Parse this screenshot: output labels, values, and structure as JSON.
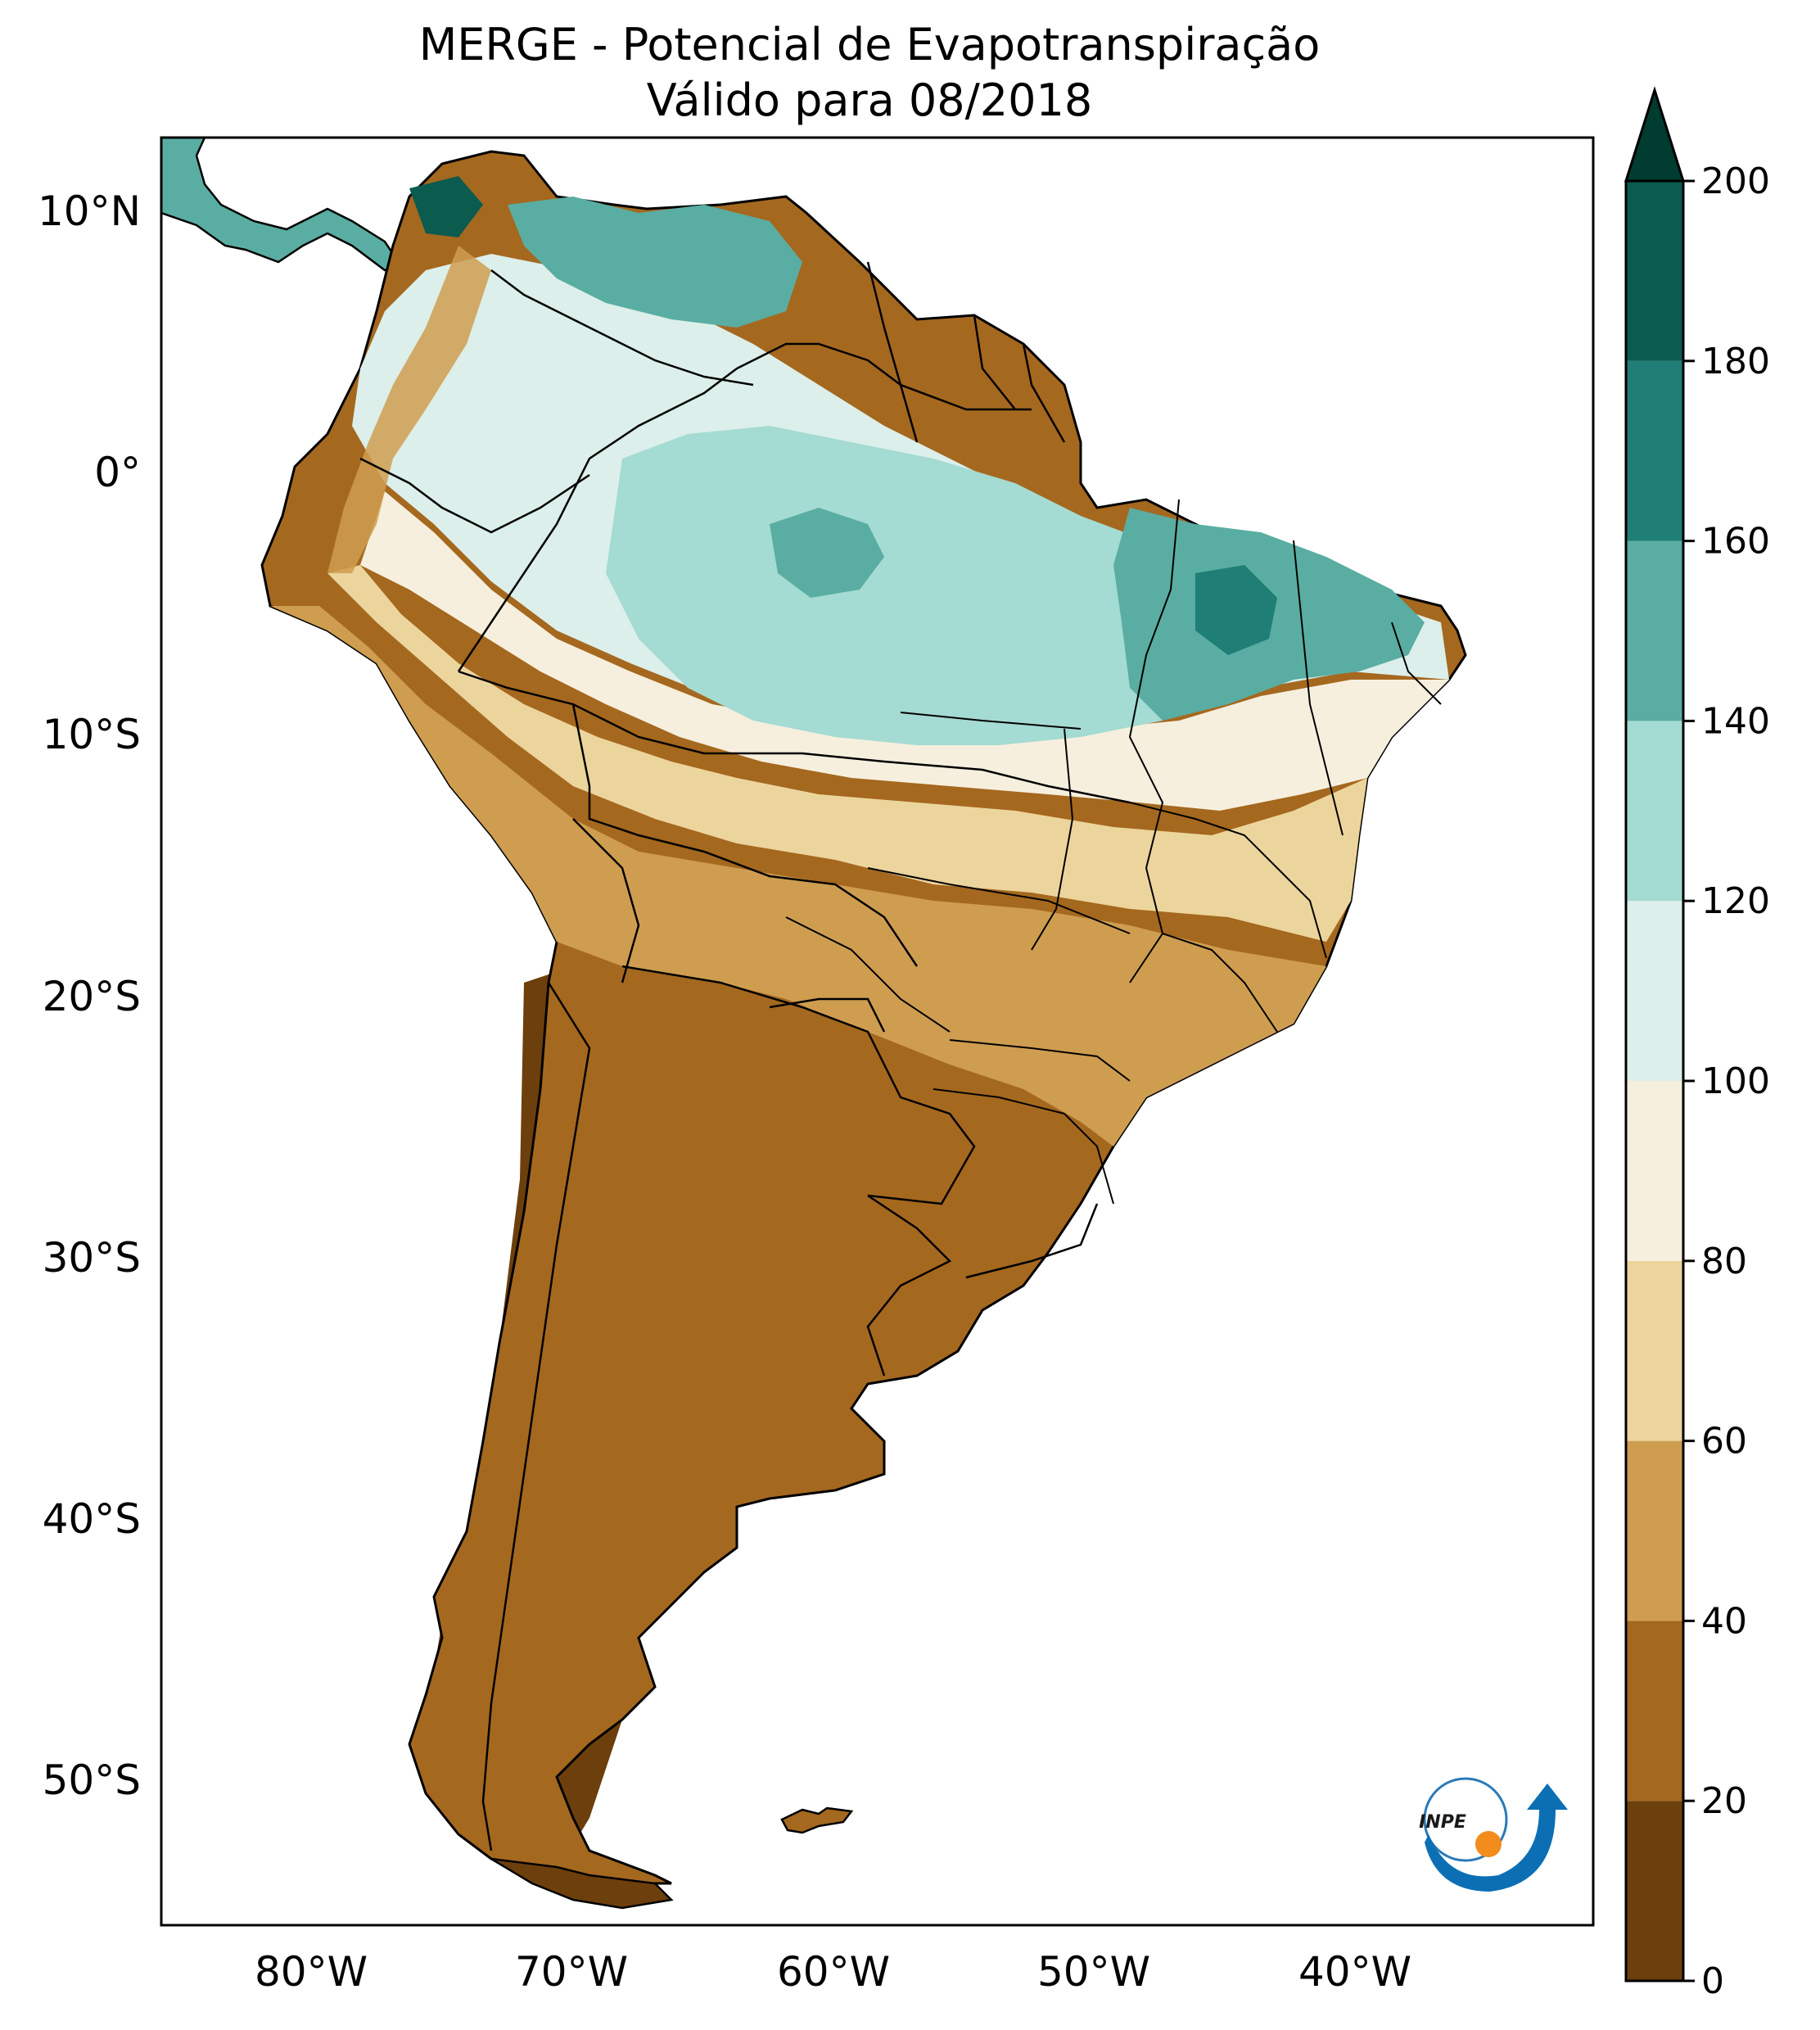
{
  "title": {
    "line1": "MERGE - Potencial de Evapotranspiração",
    "line2": "Válido para 08/2018"
  },
  "map": {
    "region": "South America",
    "lat_ticks": [
      "10°N",
      "0°",
      "10°S",
      "20°S",
      "30°S",
      "40°S",
      "50°S"
    ],
    "lon_ticks": [
      "80°W",
      "70°W",
      "60°W",
      "50°W",
      "40°W"
    ]
  },
  "colorbar": {
    "tick_labels": [
      "0",
      "20",
      "40",
      "60",
      "80",
      "100",
      "120",
      "140",
      "160",
      "180",
      "200"
    ],
    "bins": [
      {
        "from": 0,
        "to": 20,
        "color": "#6d3f0c"
      },
      {
        "from": 20,
        "to": 40,
        "color": "#a5681f"
      },
      {
        "from": 40,
        "to": 60,
        "color": "#cf9d50"
      },
      {
        "from": 60,
        "to": 80,
        "color": "#ecd59d"
      },
      {
        "from": 80,
        "to": 100,
        "color": "#f6efde"
      },
      {
        "from": 100,
        "to": 120,
        "color": "#dcefea"
      },
      {
        "from": 120,
        "to": 140,
        "color": "#a4dbd2"
      },
      {
        "from": 140,
        "to": 160,
        "color": "#5aada2"
      },
      {
        "from": 160,
        "to": 180,
        "color": "#1f7e75"
      },
      {
        "from": 180,
        "to": 200,
        "color": "#0b5b4f"
      }
    ],
    "extend_color": "#003c30"
  },
  "logo": {
    "text": "INPE"
  }
}
